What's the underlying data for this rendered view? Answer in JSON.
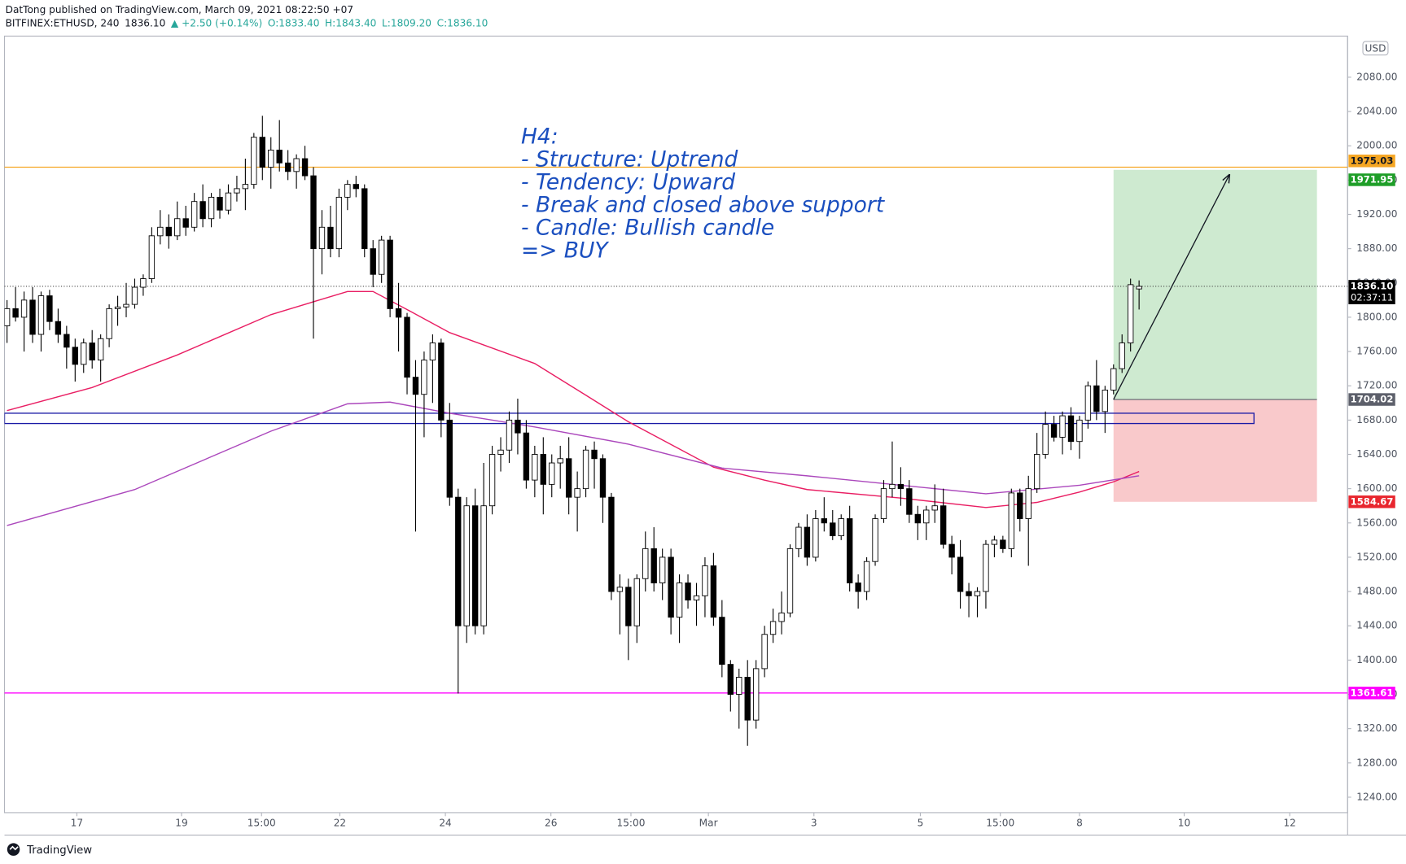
{
  "chart_data": {
    "type": "candlestick",
    "title": "DatTong published on TradingView.com, March 09, 2021 08:22:50 +07",
    "symbol_line": [
      "BITFINEX:ETHUSD, 240",
      "1836.10",
      "▲ +2.50 (+0.14%)",
      "O:1833.40",
      "H:1843.40",
      "L:1809.20",
      "C:1836.10"
    ],
    "annotation": [
      "H4:",
      "- Structure: Uptrend",
      "- Tendency: Upward",
      "- Break and closed above support",
      "- Candle: Bullish candle",
      "=> BUY"
    ],
    "currency": "USD",
    "countdown": "02:37:11",
    "brand": "TradingView",
    "xlim": [
      -0.3,
      157.5
    ],
    "ylim": [
      1222,
      2128
    ],
    "xticks": [
      {
        "value": 8.2,
        "label": "17"
      },
      {
        "value": 20.5,
        "label": "19"
      },
      {
        "value": 29.9,
        "label": "15:00"
      },
      {
        "value": 39.1,
        "label": "22"
      },
      {
        "value": 51.5,
        "label": "24"
      },
      {
        "value": 63.9,
        "label": "26"
      },
      {
        "value": 73.3,
        "label": "15:00"
      },
      {
        "value": 82.4,
        "label": "Mar"
      },
      {
        "value": 94.8,
        "label": "3"
      },
      {
        "value": 107.3,
        "label": "5"
      },
      {
        "value": 116.7,
        "label": "15:00"
      },
      {
        "value": 126,
        "label": "8"
      },
      {
        "value": 138.3,
        "label": "10"
      },
      {
        "value": 150.7,
        "label": "12"
      }
    ],
    "yticks": [
      {
        "value": 1240,
        "label": "1240.00"
      },
      {
        "value": 1280,
        "label": "1280.00"
      },
      {
        "value": 1320,
        "label": "1320.00"
      },
      {
        "value": 1360,
        "label": "1360.00"
      },
      {
        "value": 1400,
        "label": "1400.00"
      },
      {
        "value": 1440,
        "label": "1440.00"
      },
      {
        "value": 1480,
        "label": "1480.00"
      },
      {
        "value": 1520,
        "label": "1520.00"
      },
      {
        "value": 1560,
        "label": "1560.00"
      },
      {
        "value": 1600,
        "label": "1600.00"
      },
      {
        "value": 1640,
        "label": "1640.00"
      },
      {
        "value": 1680,
        "label": "1680.00"
      },
      {
        "value": 1720,
        "label": "1720.00"
      },
      {
        "value": 1760,
        "label": "1760.00"
      },
      {
        "value": 1800,
        "label": "1800.00"
      },
      {
        "value": 1840,
        "label": "1840.00"
      },
      {
        "value": 1880,
        "label": "1880.00"
      },
      {
        "value": 1920,
        "label": "1920.00"
      },
      {
        "value": 1960,
        "label": "1960.00"
      },
      {
        "value": 2000,
        "label": "2000.00"
      },
      {
        "value": 2040,
        "label": "2040.00"
      },
      {
        "value": 2080,
        "label": "2080.00"
      }
    ],
    "grid": false,
    "up_color": "#ffffff",
    "down_color": "#000000",
    "candles": [
      [
        1790,
        1820,
        1770,
        1810
      ],
      [
        1810,
        1835,
        1795,
        1800
      ],
      [
        1800,
        1830,
        1760,
        1820
      ],
      [
        1820,
        1835,
        1770,
        1780
      ],
      [
        1780,
        1830,
        1760,
        1825
      ],
      [
        1825,
        1832,
        1785,
        1795
      ],
      [
        1795,
        1810,
        1770,
        1780
      ],
      [
        1780,
        1790,
        1740,
        1765
      ],
      [
        1765,
        1775,
        1725,
        1745
      ],
      [
        1745,
        1775,
        1735,
        1770
      ],
      [
        1770,
        1785,
        1740,
        1750
      ],
      [
        1750,
        1780,
        1725,
        1775
      ],
      [
        1775,
        1815,
        1765,
        1810
      ],
      [
        1810,
        1825,
        1790,
        1812
      ],
      [
        1812,
        1840,
        1800,
        1815
      ],
      [
        1815,
        1845,
        1810,
        1835
      ],
      [
        1835,
        1850,
        1825,
        1845
      ],
      [
        1845,
        1905,
        1840,
        1895
      ],
      [
        1895,
        1925,
        1885,
        1905
      ],
      [
        1905,
        1920,
        1880,
        1895
      ],
      [
        1895,
        1935,
        1890,
        1915
      ],
      [
        1915,
        1930,
        1895,
        1905
      ],
      [
        1905,
        1945,
        1900,
        1935
      ],
      [
        1935,
        1955,
        1905,
        1915
      ],
      [
        1915,
        1945,
        1905,
        1940
      ],
      [
        1940,
        1950,
        1915,
        1925
      ],
      [
        1925,
        1955,
        1920,
        1945
      ],
      [
        1945,
        1965,
        1935,
        1950
      ],
      [
        1950,
        1985,
        1925,
        1955
      ],
      [
        1955,
        2015,
        1950,
        2010
      ],
      [
        2010,
        2035,
        1960,
        1975
      ],
      [
        1975,
        2010,
        1950,
        1995
      ],
      [
        1995,
        2030,
        1970,
        1980
      ],
      [
        1980,
        1995,
        1960,
        1970
      ],
      [
        1970,
        1990,
        1950,
        1985
      ],
      [
        1985,
        2000,
        1960,
        1965
      ],
      [
        1965,
        1975,
        1775,
        1880
      ],
      [
        1880,
        1925,
        1850,
        1905
      ],
      [
        1905,
        1930,
        1870,
        1880
      ],
      [
        1880,
        1950,
        1870,
        1940
      ],
      [
        1940,
        1960,
        1925,
        1955
      ],
      [
        1955,
        1965,
        1940,
        1950
      ],
      [
        1950,
        1955,
        1870,
        1880
      ],
      [
        1880,
        1890,
        1835,
        1850
      ],
      [
        1850,
        1895,
        1840,
        1890
      ],
      [
        1890,
        1895,
        1800,
        1810
      ],
      [
        1810,
        1840,
        1760,
        1800
      ],
      [
        1800,
        1805,
        1710,
        1730
      ],
      [
        1730,
        1750,
        1550,
        1710
      ],
      [
        1710,
        1760,
        1660,
        1750
      ],
      [
        1750,
        1780,
        1700,
        1770
      ],
      [
        1770,
        1775,
        1660,
        1680
      ],
      [
        1680,
        1700,
        1580,
        1590
      ],
      [
        1590,
        1600,
        1361,
        1440
      ],
      [
        1440,
        1590,
        1420,
        1580
      ],
      [
        1580,
        1600,
        1430,
        1440
      ],
      [
        1440,
        1630,
        1430,
        1580
      ],
      [
        1580,
        1650,
        1570,
        1640
      ],
      [
        1640,
        1660,
        1620,
        1645
      ],
      [
        1645,
        1690,
        1630,
        1680
      ],
      [
        1680,
        1705,
        1640,
        1665
      ],
      [
        1665,
        1680,
        1600,
        1610
      ],
      [
        1610,
        1650,
        1590,
        1640
      ],
      [
        1640,
        1660,
        1570,
        1605
      ],
      [
        1605,
        1640,
        1590,
        1630
      ],
      [
        1630,
        1650,
        1600,
        1635
      ],
      [
        1635,
        1660,
        1570,
        1590
      ],
      [
        1590,
        1620,
        1550,
        1600
      ],
      [
        1600,
        1650,
        1590,
        1645
      ],
      [
        1645,
        1655,
        1600,
        1635
      ],
      [
        1635,
        1640,
        1560,
        1590
      ],
      [
        1590,
        1595,
        1470,
        1480
      ],
      [
        1480,
        1500,
        1430,
        1485
      ],
      [
        1485,
        1495,
        1400,
        1440
      ],
      [
        1440,
        1500,
        1420,
        1495
      ],
      [
        1495,
        1550,
        1480,
        1530
      ],
      [
        1530,
        1555,
        1480,
        1490
      ],
      [
        1490,
        1530,
        1470,
        1520
      ],
      [
        1520,
        1530,
        1430,
        1450
      ],
      [
        1450,
        1500,
        1420,
        1490
      ],
      [
        1490,
        1500,
        1460,
        1470
      ],
      [
        1470,
        1490,
        1440,
        1475
      ],
      [
        1475,
        1520,
        1450,
        1510
      ],
      [
        1510,
        1525,
        1440,
        1450
      ],
      [
        1450,
        1470,
        1380,
        1395
      ],
      [
        1395,
        1400,
        1340,
        1360
      ],
      [
        1360,
        1390,
        1320,
        1380
      ],
      [
        1380,
        1400,
        1300,
        1330
      ],
      [
        1330,
        1400,
        1320,
        1390
      ],
      [
        1390,
        1440,
        1380,
        1430
      ],
      [
        1430,
        1460,
        1420,
        1445
      ],
      [
        1445,
        1480,
        1430,
        1455
      ],
      [
        1455,
        1535,
        1450,
        1530
      ],
      [
        1530,
        1560,
        1520,
        1555
      ],
      [
        1555,
        1570,
        1510,
        1520
      ],
      [
        1520,
        1575,
        1515,
        1565
      ],
      [
        1565,
        1590,
        1550,
        1560
      ],
      [
        1560,
        1575,
        1540,
        1545
      ],
      [
        1545,
        1570,
        1540,
        1565
      ],
      [
        1565,
        1580,
        1480,
        1490
      ],
      [
        1490,
        1500,
        1460,
        1480
      ],
      [
        1480,
        1520,
        1470,
        1515
      ],
      [
        1515,
        1570,
        1510,
        1565
      ],
      [
        1565,
        1610,
        1560,
        1600
      ],
      [
        1600,
        1655,
        1590,
        1605
      ],
      [
        1605,
        1625,
        1580,
        1600
      ],
      [
        1600,
        1610,
        1560,
        1570
      ],
      [
        1570,
        1580,
        1540,
        1560
      ],
      [
        1560,
        1580,
        1540,
        1575
      ],
      [
        1575,
        1605,
        1560,
        1580
      ],
      [
        1580,
        1600,
        1530,
        1535
      ],
      [
        1535,
        1545,
        1500,
        1520
      ],
      [
        1520,
        1540,
        1460,
        1480
      ],
      [
        1480,
        1490,
        1450,
        1475
      ],
      [
        1475,
        1485,
        1450,
        1480
      ],
      [
        1480,
        1540,
        1460,
        1535
      ],
      [
        1535,
        1545,
        1520,
        1540
      ],
      [
        1540,
        1545,
        1525,
        1530
      ],
      [
        1530,
        1600,
        1520,
        1595
      ],
      [
        1595,
        1600,
        1550,
        1565
      ],
      [
        1565,
        1615,
        1510,
        1600
      ],
      [
        1600,
        1665,
        1595,
        1640
      ],
      [
        1640,
        1690,
        1635,
        1675
      ],
      [
        1675,
        1685,
        1655,
        1660
      ],
      [
        1660,
        1690,
        1640,
        1685
      ],
      [
        1685,
        1695,
        1645,
        1655
      ],
      [
        1655,
        1685,
        1635,
        1680
      ],
      [
        1680,
        1725,
        1670,
        1720
      ],
      [
        1720,
        1750,
        1680,
        1690
      ],
      [
        1690,
        1720,
        1665,
        1715
      ],
      [
        1715,
        1745,
        1710,
        1740
      ],
      [
        1740,
        1780,
        1735,
        1770
      ],
      [
        1770,
        1845,
        1760,
        1838
      ],
      [
        1833,
        1843,
        1809,
        1836
      ]
    ],
    "moving_averages": [
      {
        "color": "#e91e63",
        "x": [
          0,
          10,
          20,
          31,
          40,
          43,
          47,
          52,
          62,
          68,
          73,
          83,
          89,
          94,
          105,
          115,
          121,
          126,
          130,
          133
        ],
        "values": [
          1691,
          1718,
          1756,
          1803,
          1830,
          1830,
          1809,
          1782,
          1746,
          1709,
          1678,
          1625,
          1610,
          1599,
          1589,
          1578,
          1584,
          1596,
          1608,
          1620
        ]
      },
      {
        "color": "#ab47bc",
        "x": [
          0,
          15,
          31,
          40,
          45,
          52,
          62,
          73,
          84,
          94,
          105,
          115,
          126,
          133
        ],
        "values": [
          1557,
          1599,
          1667,
          1699,
          1701,
          1688,
          1672,
          1652,
          1624,
          1615,
          1604,
          1594,
          1604,
          1615
        ]
      }
    ],
    "hlines": [
      {
        "value": 1975.03,
        "color": "#f5a623"
      },
      {
        "value": 1361.61,
        "color": "#ff00ff"
      }
    ],
    "last_price": {
      "value": 1836.1,
      "label": "1836.10",
      "color": "#000000"
    },
    "zone": {
      "top": 1688,
      "bottom": 1676,
      "xend": 146.5,
      "color": "#1a1aa6"
    },
    "position": {
      "x": [
        130,
        153.9
      ],
      "target": 1971.95,
      "entry": 1704.02,
      "stop": 1584.67,
      "target_color": "#1e9e28",
      "entry_color": "#5d606b",
      "stop_color": "#e8262e"
    },
    "arrow": {
      "x": [
        130,
        143.6
      ],
      "y": [
        1704.02,
        1966
      ]
    }
  }
}
